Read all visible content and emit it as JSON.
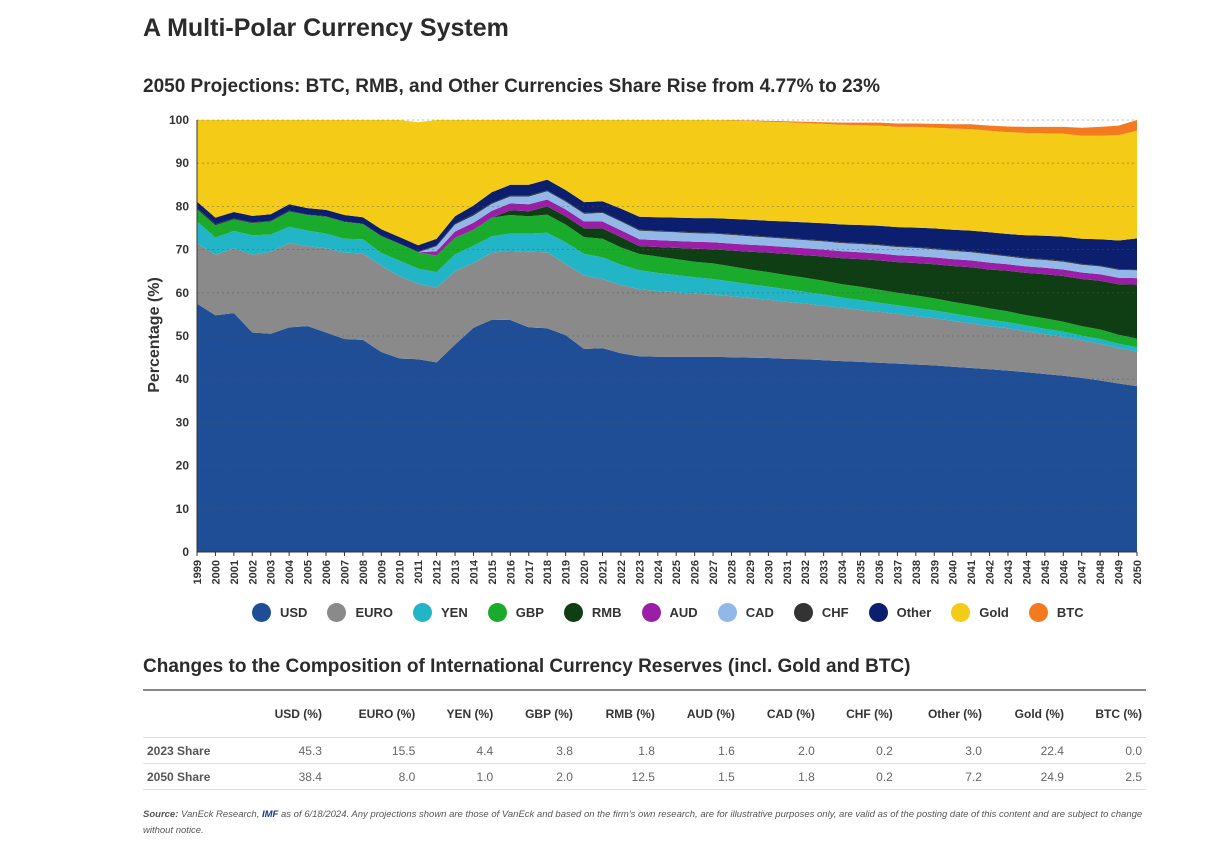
{
  "page_title": "A Multi-Polar Currency System",
  "chart_data": {
    "type": "area",
    "stacked": true,
    "title": "2050 Projections: BTC, RMB, and Other Currencies Share Rise from 4.77% to 23%",
    "ylabel": "Percentage (%)",
    "xlabel": "",
    "ylim": [
      0,
      100
    ],
    "yticks": [
      0,
      10,
      20,
      30,
      40,
      50,
      60,
      70,
      80,
      90,
      100
    ],
    "grid": true,
    "legend_position": "bottom",
    "x": [
      1999,
      2000,
      2001,
      2002,
      2003,
      2004,
      2005,
      2006,
      2007,
      2008,
      2009,
      2010,
      2011,
      2012,
      2013,
      2014,
      2015,
      2016,
      2017,
      2018,
      2019,
      2020,
      2021,
      2022,
      2023,
      2024,
      2025,
      2026,
      2027,
      2028,
      2029,
      2030,
      2031,
      2032,
      2033,
      2034,
      2035,
      2036,
      2037,
      2038,
      2039,
      2040,
      2041,
      2042,
      2043,
      2044,
      2045,
      2046,
      2047,
      2048,
      2049,
      2050
    ],
    "series": [
      {
        "name": "USD",
        "color": "#1f4e96",
        "values": [
          57.5,
          54.8,
          55.3,
          50.8,
          50.5,
          52.0,
          52.3,
          50.8,
          49.3,
          49.1,
          46.3,
          44.8,
          44.6,
          43.9,
          48.0,
          51.9,
          53.8,
          53.7,
          52.0,
          51.8,
          50.2,
          47.0,
          47.2,
          46.0,
          45.3,
          45.2,
          45.2,
          45.2,
          45.2,
          45.1,
          45.0,
          44.9,
          44.7,
          44.6,
          44.4,
          44.2,
          44.0,
          43.8,
          43.6,
          43.4,
          43.2,
          42.9,
          42.6,
          42.3,
          42.0,
          41.6,
          41.2,
          40.8,
          40.3,
          39.7,
          39.0,
          38.4
        ]
      },
      {
        "name": "EURO",
        "color": "#8a8a8a",
        "values": [
          14.0,
          14.0,
          15.0,
          18.0,
          19.0,
          19.5,
          18.5,
          19.5,
          20.0,
          20.0,
          20.0,
          19.0,
          17.5,
          17.3,
          17.0,
          15.0,
          15.5,
          16.0,
          17.5,
          17.6,
          16.5,
          17.0,
          16.0,
          15.8,
          15.5,
          15.2,
          14.9,
          14.6,
          14.4,
          14.1,
          13.8,
          13.5,
          13.2,
          12.9,
          12.6,
          12.3,
          12.0,
          11.8,
          11.5,
          11.2,
          10.9,
          10.6,
          10.3,
          10.0,
          9.8,
          9.5,
          9.2,
          9.0,
          8.7,
          8.5,
          8.2,
          8.0
        ]
      },
      {
        "name": "YEN",
        "color": "#22b5c7",
        "values": [
          5.0,
          4.0,
          4.0,
          4.5,
          4.0,
          3.8,
          3.6,
          3.4,
          3.2,
          3.3,
          2.9,
          3.6,
          3.5,
          3.6,
          3.9,
          4.0,
          3.8,
          4.0,
          4.2,
          4.5,
          5.0,
          5.0,
          5.0,
          4.7,
          4.4,
          4.2,
          4.0,
          3.8,
          3.6,
          3.4,
          3.2,
          3.0,
          2.9,
          2.7,
          2.6,
          2.4,
          2.3,
          2.1,
          2.0,
          1.9,
          1.8,
          1.7,
          1.6,
          1.5,
          1.4,
          1.3,
          1.3,
          1.2,
          1.1,
          1.1,
          1.0,
          1.0
        ]
      },
      {
        "name": "GBP",
        "color": "#1aab2c",
        "values": [
          2.8,
          2.8,
          2.7,
          2.8,
          3.0,
          3.5,
          3.6,
          3.9,
          3.9,
          3.5,
          3.9,
          3.9,
          3.8,
          3.8,
          3.8,
          3.7,
          4.3,
          4.3,
          4.0,
          4.2,
          4.1,
          3.9,
          4.3,
          4.0,
          3.8,
          3.8,
          3.7,
          3.6,
          3.6,
          3.5,
          3.4,
          3.4,
          3.3,
          3.3,
          3.2,
          3.1,
          3.1,
          3.0,
          2.9,
          2.9,
          2.8,
          2.7,
          2.7,
          2.6,
          2.5,
          2.4,
          2.4,
          2.3,
          2.2,
          2.2,
          2.1,
          2.0
        ]
      },
      {
        "name": "RMB",
        "color": "#0f3d14",
        "values": [
          0,
          0,
          0,
          0,
          0,
          0,
          0,
          0,
          0,
          0,
          0,
          0,
          0,
          0,
          0,
          0,
          0,
          1.1,
          1.2,
          1.9,
          1.9,
          2.0,
          2.4,
          2.4,
          1.8,
          2.2,
          2.6,
          3.0,
          3.3,
          3.7,
          4.1,
          4.5,
          4.9,
          5.2,
          5.6,
          6.0,
          6.4,
          6.8,
          7.1,
          7.5,
          7.9,
          8.3,
          8.7,
          9.0,
          9.4,
          9.8,
          10.2,
          10.6,
          10.9,
          11.3,
          11.7,
          12.5
        ]
      },
      {
        "name": "AUD",
        "color": "#9b1fa6",
        "values": [
          0,
          0,
          0,
          0,
          0,
          0,
          0,
          0,
          0,
          0,
          0,
          0,
          0,
          1.0,
          1.5,
          1.6,
          1.6,
          1.6,
          1.6,
          1.6,
          1.6,
          1.6,
          1.6,
          1.6,
          1.6,
          1.6,
          1.6,
          1.6,
          1.6,
          1.6,
          1.6,
          1.6,
          1.6,
          1.6,
          1.6,
          1.6,
          1.6,
          1.6,
          1.6,
          1.6,
          1.6,
          1.6,
          1.6,
          1.6,
          1.5,
          1.5,
          1.5,
          1.5,
          1.5,
          1.5,
          1.5,
          1.5
        ]
      },
      {
        "name": "CAD",
        "color": "#92b8e8",
        "values": [
          0,
          0,
          0,
          0,
          0,
          0,
          0,
          0,
          0,
          0,
          0,
          0,
          0,
          1.2,
          1.6,
          1.7,
          1.6,
          1.6,
          1.8,
          1.9,
          1.8,
          1.8,
          2.0,
          2.0,
          2.0,
          2.0,
          2.0,
          2.0,
          2.0,
          2.0,
          2.0,
          1.9,
          1.9,
          1.9,
          1.9,
          1.9,
          1.9,
          1.9,
          1.9,
          1.9,
          1.9,
          1.9,
          1.9,
          1.9,
          1.8,
          1.8,
          1.8,
          1.8,
          1.8,
          1.8,
          1.8,
          1.8
        ]
      },
      {
        "name": "CHF",
        "color": "#333333",
        "values": [
          0.3,
          0.3,
          0.2,
          0.2,
          0.2,
          0.2,
          0.1,
          0.1,
          0.1,
          0.1,
          0.1,
          0.1,
          0.1,
          0.2,
          0.2,
          0.3,
          0.2,
          0.2,
          0.2,
          0.2,
          0.2,
          0.2,
          0.2,
          0.2,
          0.2,
          0.2,
          0.2,
          0.2,
          0.2,
          0.2,
          0.2,
          0.2,
          0.2,
          0.2,
          0.2,
          0.2,
          0.2,
          0.2,
          0.2,
          0.2,
          0.2,
          0.2,
          0.2,
          0.2,
          0.2,
          0.2,
          0.2,
          0.2,
          0.2,
          0.2,
          0.2,
          0.2
        ]
      },
      {
        "name": "Other",
        "color": "#0c1f6e",
        "values": [
          1.5,
          1.5,
          1.5,
          1.5,
          1.5,
          1.5,
          1.5,
          1.5,
          1.5,
          1.5,
          1.5,
          1.5,
          1.5,
          1.5,
          1.7,
          2.0,
          2.5,
          2.5,
          2.5,
          2.5,
          2.5,
          2.5,
          2.5,
          2.8,
          3.0,
          3.1,
          3.2,
          3.3,
          3.4,
          3.5,
          3.6,
          3.7,
          3.8,
          3.9,
          4.0,
          4.1,
          4.2,
          4.3,
          4.4,
          4.5,
          4.6,
          4.7,
          4.8,
          4.9,
          5.0,
          5.2,
          5.4,
          5.6,
          5.8,
          6.1,
          6.6,
          7.2
        ]
      },
      {
        "name": "Gold",
        "color": "#f4cb16",
        "values": [
          18.9,
          22.6,
          21.3,
          22.2,
          21.8,
          19.5,
          20.4,
          20.8,
          22.0,
          22.5,
          25.3,
          27.1,
          28.5,
          27.5,
          22.3,
          19.8,
          16.7,
          15.0,
          15.0,
          13.8,
          16.2,
          21.0,
          18.8,
          20.5,
          22.4,
          22.5,
          22.6,
          22.7,
          22.7,
          22.8,
          22.9,
          22.9,
          23.0,
          23.0,
          23.0,
          23.1,
          23.1,
          23.2,
          23.2,
          23.3,
          23.3,
          23.4,
          23.5,
          23.5,
          23.6,
          23.7,
          23.7,
          23.8,
          23.9,
          24.0,
          24.4,
          24.9
        ]
      },
      {
        "name": "BTC",
        "color": "#f47a20",
        "values": [
          0,
          0,
          0,
          0,
          0,
          0,
          0,
          0,
          0,
          0,
          0,
          0,
          0,
          0,
          0,
          0,
          0,
          0,
          0,
          0,
          0,
          0,
          0,
          0,
          0.0,
          0.0,
          0.0,
          0.0,
          0.0,
          0.1,
          0.1,
          0.2,
          0.2,
          0.3,
          0.4,
          0.5,
          0.6,
          0.7,
          0.8,
          0.8,
          0.9,
          1.0,
          1.1,
          1.2,
          1.3,
          1.4,
          1.5,
          1.6,
          1.8,
          2.0,
          2.2,
          2.5
        ]
      }
    ]
  },
  "table": {
    "title": "Changes to the Composition of International Currency Reserves (incl. Gold and BTC)",
    "headers": [
      "",
      "USD (%)",
      "EURO (%)",
      "YEN (%)",
      "GBP (%)",
      "RMB (%)",
      "AUD (%)",
      "CAD (%)",
      "CHF (%)",
      "Other (%)",
      "Gold (%)",
      "BTC (%)"
    ],
    "rows": [
      {
        "label": "2023 Share",
        "values": [
          "45.3",
          "15.5",
          "4.4",
          "3.8",
          "1.8",
          "1.6",
          "2.0",
          "0.2",
          "3.0",
          "22.4",
          "0.0"
        ]
      },
      {
        "label": "2050 Share",
        "values": [
          "38.4",
          "8.0",
          "1.0",
          "2.0",
          "12.5",
          "1.5",
          "1.8",
          "0.2",
          "7.2",
          "24.9",
          "2.5"
        ]
      }
    ]
  },
  "source": {
    "label": "Source:",
    "text_a": " VanEck Research, ",
    "imf": "IMF",
    "text_b": " as of 6/18/2024. Any projections shown are those of VanEck and based on the firm's own research, are for illustrative purposes only, are valid as of the posting date of this content and are subject to change without notice."
  }
}
